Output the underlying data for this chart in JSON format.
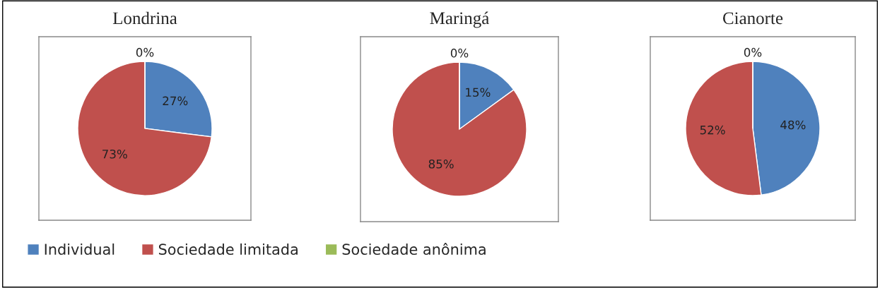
{
  "chart_data": [
    {
      "type": "pie",
      "title": "Londrina",
      "categories": [
        "Individual",
        "Sociedade limitada",
        "Sociedade anônima"
      ],
      "values": [
        27,
        73,
        0
      ],
      "colors": [
        "#4f81bd",
        "#c0504d",
        "#9bbb59"
      ],
      "value_labels": [
        "27%",
        "73%",
        "0%"
      ],
      "legend": "bottom"
    },
    {
      "type": "pie",
      "title": "Maringá",
      "values": [
        15,
        85,
        0
      ],
      "colors": [
        "#4f81bd",
        "#c0504d",
        "#9bbb59"
      ],
      "value_labels": [
        "15%",
        "85%",
        "0%"
      ]
    },
    {
      "type": "pie",
      "title": "Cianorte",
      "values": [
        48,
        52,
        0
      ],
      "colors": [
        "#4f81bd",
        "#c0504d",
        "#9bbb59"
      ],
      "value_labels": [
        "48%",
        "52%",
        "0%"
      ]
    }
  ]
}
